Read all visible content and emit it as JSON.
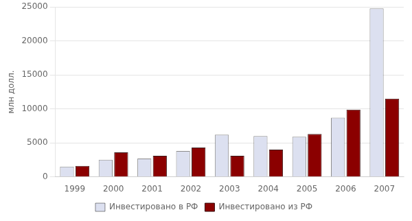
{
  "chart_data": {
    "type": "bar",
    "categories": [
      "1999",
      "2000",
      "2001",
      "2002",
      "2003",
      "2004",
      "2005",
      "2006",
      "2007"
    ],
    "series": [
      {
        "name": "Инвестировано в РФ",
        "color": "#dce0f0",
        "values": [
          1500,
          2500,
          2700,
          3800,
          6200,
          6000,
          5900,
          8700,
          24800
        ]
      },
      {
        "name": "Инвестировано из РФ",
        "color": "#8b0000",
        "values": [
          1600,
          3600,
          3100,
          4300,
          3100,
          4000,
          6300,
          9900,
          11500
        ]
      }
    ],
    "ylabel": "млн долл.",
    "ylim": [
      0,
      25000
    ],
    "yticks": [
      0,
      5000,
      10000,
      15000,
      20000,
      25000
    ],
    "grid": true,
    "legend": "bottom"
  }
}
